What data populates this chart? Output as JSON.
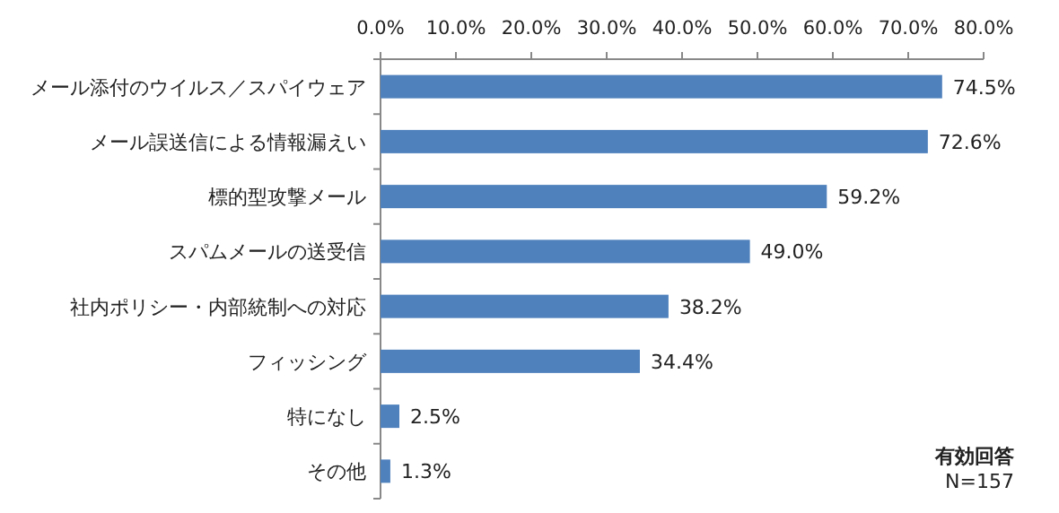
{
  "chart_data": {
    "type": "bar",
    "orientation": "horizontal",
    "categories": [
      "メール添付のウイルス／スパイウェア",
      "メール誤送信による情報漏えい",
      "標的型攻撃メール",
      "スパムメールの送受信",
      "社内ポリシー・内部統制への対応",
      "フィッシング",
      "特になし",
      "その他"
    ],
    "values": [
      74.5,
      72.6,
      59.2,
      49.0,
      38.2,
      34.4,
      2.5,
      1.3
    ],
    "value_labels": [
      "74.5%",
      "72.6%",
      "59.2%",
      "49.0%",
      "38.2%",
      "34.4%",
      "2.5%",
      "1.3%"
    ],
    "color": "#4f81bd",
    "xlim": [
      0,
      80
    ],
    "xticks": [
      {
        "value": 0,
        "label": "0.0%"
      },
      {
        "value": 10,
        "label": "10.0%"
      },
      {
        "value": 20,
        "label": "20.0%"
      },
      {
        "value": 30,
        "label": "30.0%"
      },
      {
        "value": 40,
        "label": "40.0%"
      },
      {
        "value": 50,
        "label": "50.0%"
      },
      {
        "value": 60,
        "label": "60.0%"
      },
      {
        "value": 70,
        "label": "70.0%"
      },
      {
        "value": 80,
        "label": "80.0%"
      }
    ],
    "annotations": [
      "有効回答",
      "N=157"
    ]
  }
}
